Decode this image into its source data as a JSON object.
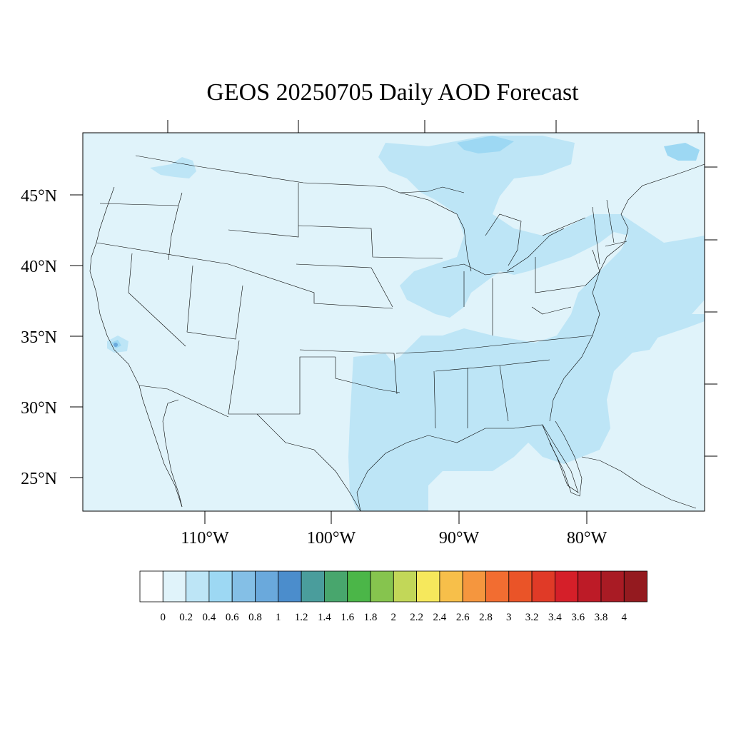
{
  "title": "GEOS 20250705 Daily AOD Forecast",
  "map": {
    "projection": "lambert-conformal",
    "background_color": "#e0f3fa",
    "lat_labels": [
      "45°N",
      "40°N",
      "35°N",
      "30°N",
      "25°N"
    ],
    "lon_labels": [
      "110°W",
      "100°W",
      "90°W",
      "80°W"
    ]
  },
  "colorbar": {
    "labels": [
      "0",
      "0.2",
      "0.4",
      "0.6",
      "0.8",
      "1",
      "1.2",
      "1.4",
      "1.6",
      "1.8",
      "2",
      "2.2",
      "2.4",
      "2.6",
      "2.8",
      "3",
      "3.2",
      "3.4",
      "3.6",
      "3.8",
      "4"
    ],
    "colors": [
      "#ffffff",
      "#e0f3fa",
      "#bde5f6",
      "#9dd8f3",
      "#84bfe6",
      "#6aa9dc",
      "#4b8dcc",
      "#4a9d9c",
      "#48a66d",
      "#4bb648",
      "#86c44e",
      "#c2d758",
      "#f6e85c",
      "#f7bf4a",
      "#f5963e",
      "#f26d31",
      "#ea5428",
      "#e03a27",
      "#d51f29",
      "#bd1b27",
      "#a91b24",
      "#941a1f"
    ]
  }
}
